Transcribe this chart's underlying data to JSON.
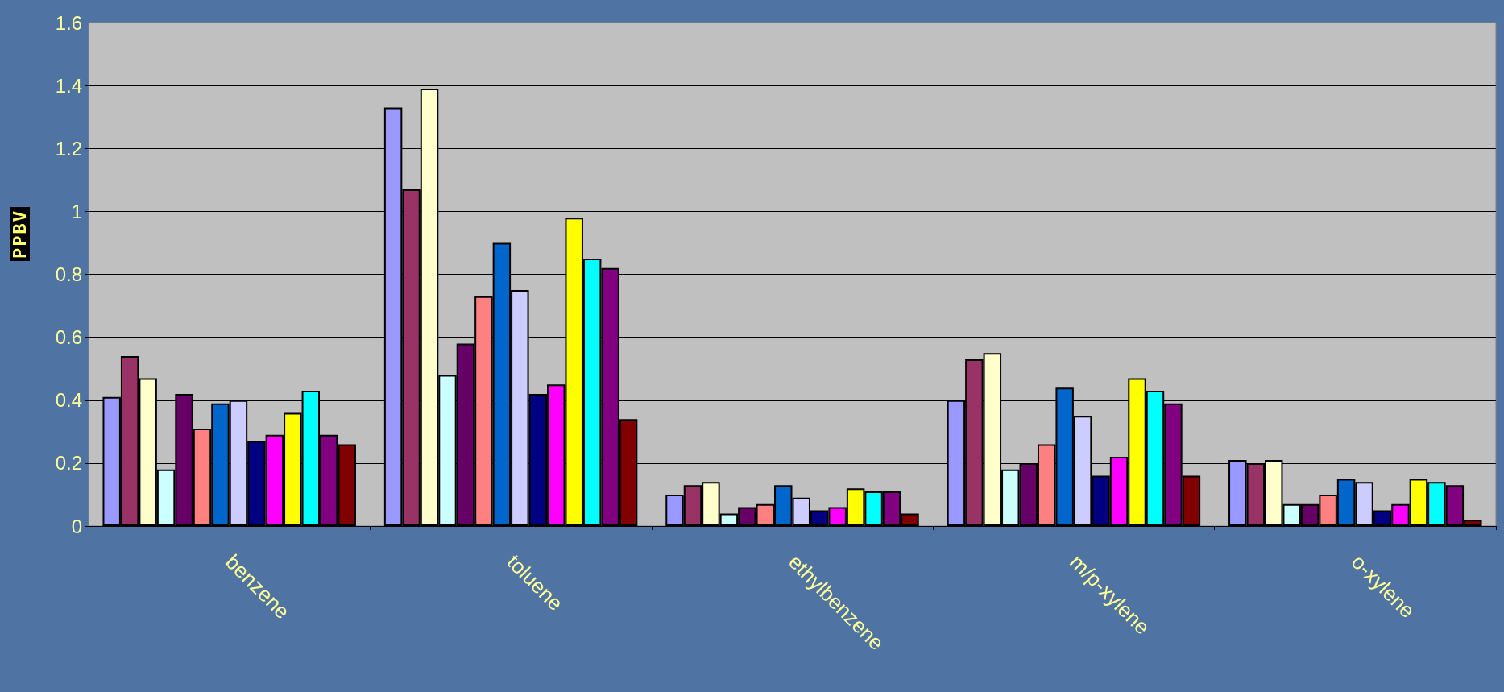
{
  "chart_data": {
    "type": "bar",
    "ylabel": "PPBV",
    "categories": [
      "benzene",
      "toluene",
      "ethylbenzene",
      "m/p-xylene",
      "o-xylene"
    ],
    "series": [
      {
        "color": "#9999ff",
        "values": [
          0.41,
          1.33,
          0.1,
          0.4,
          0.21
        ]
      },
      {
        "color": "#993366",
        "values": [
          0.54,
          1.07,
          0.13,
          0.53,
          0.2
        ]
      },
      {
        "color": "#ffffcc",
        "values": [
          0.47,
          1.39,
          0.14,
          0.55,
          0.21
        ]
      },
      {
        "color": "#ccffff",
        "values": [
          0.18,
          0.48,
          0.04,
          0.18,
          0.07
        ]
      },
      {
        "color": "#660066",
        "values": [
          0.42,
          0.58,
          0.06,
          0.2,
          0.07
        ]
      },
      {
        "color": "#ff8080",
        "values": [
          0.31,
          0.73,
          0.07,
          0.26,
          0.1
        ]
      },
      {
        "color": "#0066cc",
        "values": [
          0.39,
          0.9,
          0.13,
          0.44,
          0.15
        ]
      },
      {
        "color": "#ccccff",
        "values": [
          0.4,
          0.75,
          0.09,
          0.35,
          0.14
        ]
      },
      {
        "color": "#000080",
        "values": [
          0.27,
          0.42,
          0.05,
          0.16,
          0.05
        ]
      },
      {
        "color": "#ff00ff",
        "values": [
          0.29,
          0.45,
          0.06,
          0.22,
          0.07
        ]
      },
      {
        "color": "#ffff00",
        "values": [
          0.36,
          0.98,
          0.12,
          0.47,
          0.15
        ]
      },
      {
        "color": "#00ffff",
        "values": [
          0.43,
          0.85,
          0.11,
          0.43,
          0.14
        ]
      },
      {
        "color": "#800080",
        "values": [
          0.29,
          0.82,
          0.11,
          0.39,
          0.13
        ]
      },
      {
        "color": "#800000",
        "values": [
          0.26,
          0.34,
          0.04,
          0.16,
          0.02
        ]
      }
    ],
    "ylim": [
      0,
      1.6
    ],
    "yticks": [
      0,
      0.2,
      0.4,
      0.6,
      0.8,
      1,
      1.2,
      1.4,
      1.6
    ],
    "grid": "y"
  }
}
